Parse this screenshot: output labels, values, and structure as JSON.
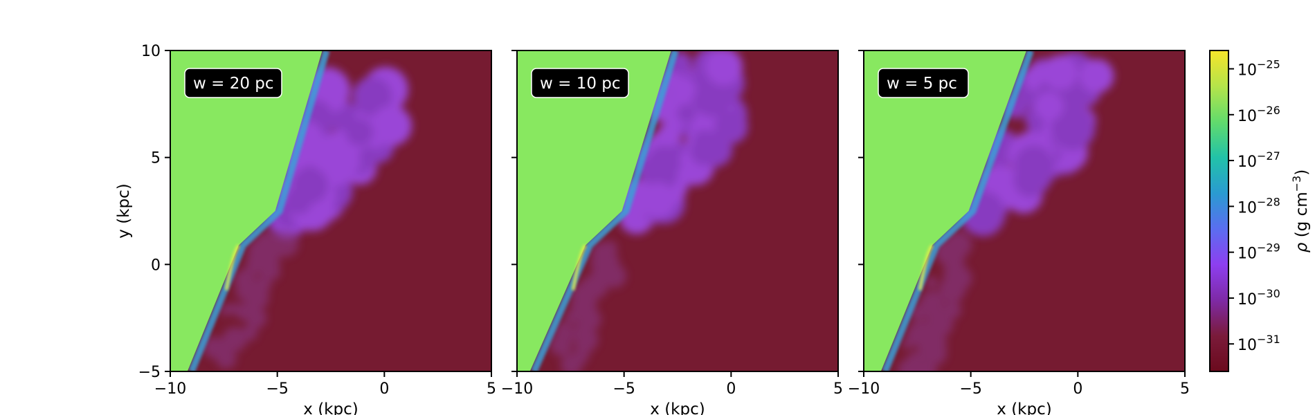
{
  "chart_data": {
    "type": "heatmap",
    "panels": [
      {
        "label": "w = 20 pc",
        "interface_x": [
          -9.2,
          -6.8,
          -5.1,
          -2.9
        ],
        "interface_y": [
          -5,
          0.9,
          2.5,
          10
        ],
        "cloud_top_y": 8.2,
        "cloud_x_max": 0.6
      },
      {
        "label": "w = 10 pc",
        "interface_x": [
          -9.4,
          -6.8,
          -5.1,
          -2.8
        ],
        "interface_y": [
          -5,
          0.9,
          2.5,
          10
        ],
        "cloud_top_y": 9.5,
        "cloud_x_max": 0.0
      },
      {
        "label": "w = 5 pc",
        "interface_x": [
          -9.2,
          -6.8,
          -5.1,
          -2.4
        ],
        "interface_y": [
          -5,
          0.9,
          2.5,
          10
        ],
        "cloud_top_y": 9.0,
        "cloud_x_max": 0.9
      }
    ],
    "xlabel": "x (kpc)",
    "ylabel": "y (kpc)",
    "xlim": [
      -10,
      5
    ],
    "ylim": [
      -5,
      10
    ],
    "xticks": [
      "−10",
      "−5",
      "0",
      "5"
    ],
    "xtick_values": [
      -10,
      -5,
      0,
      5
    ],
    "yticks": [
      "−5",
      "0",
      "5",
      "10"
    ],
    "ytick_values": [
      -5,
      0,
      5,
      10
    ],
    "colorbar": {
      "label_rho": "ρ",
      "label_units": "(g cm",
      "label_exp": "−3",
      "label_close": ")",
      "scale": "log",
      "range": [
        -31.6,
        -24.6
      ],
      "ticks": [
        {
          "value": -25,
          "base": "10",
          "exp": "−25"
        },
        {
          "value": -26,
          "base": "10",
          "exp": "−26"
        },
        {
          "value": -27,
          "base": "10",
          "exp": "−27"
        },
        {
          "value": -28,
          "base": "10",
          "exp": "−28"
        },
        {
          "value": -29,
          "base": "10",
          "exp": "−29"
        },
        {
          "value": -30,
          "base": "10",
          "exp": "−30"
        },
        {
          "value": -31,
          "base": "10",
          "exp": "−31"
        }
      ],
      "colormap": [
        "#6b0a1d",
        "#7a1b3a",
        "#7e2aa6",
        "#8d3ff0",
        "#5a6ef0",
        "#2a9bd1",
        "#22c2a8",
        "#62db6c",
        "#b5e44a",
        "#f6e52a"
      ]
    },
    "colors": {
      "ambient": "#761b31",
      "upstream": "#88e860",
      "cloud": "#8a3ec8",
      "mixed": "#9c4ae0",
      "shock": "#3aa0d8",
      "edge": "#e8f04a"
    }
  }
}
